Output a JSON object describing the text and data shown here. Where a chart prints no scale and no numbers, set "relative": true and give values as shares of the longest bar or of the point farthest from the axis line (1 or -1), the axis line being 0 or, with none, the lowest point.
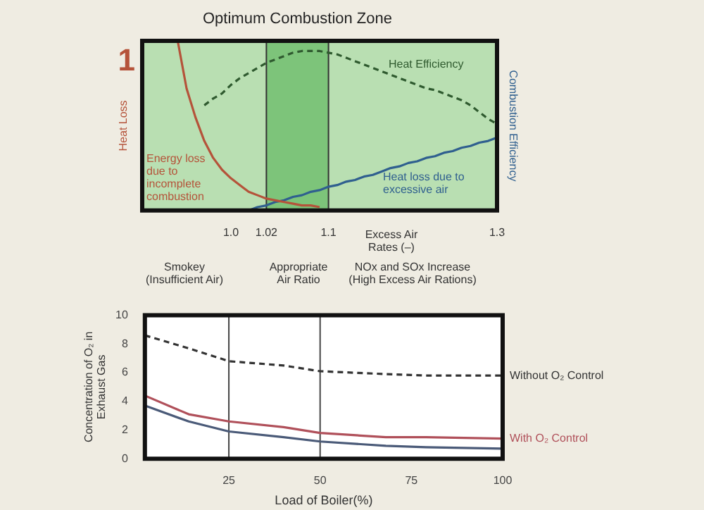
{
  "chart_data": [
    {
      "type": "line",
      "relative": true,
      "ylabel": "Heat Loss",
      "y2label": "Combustion Efficiency",
      "xlabel": "Excess Air Rates (–)",
      "legend": false,
      "annotations": [
        "1",
        "Smokey\n(Insufficient Air)",
        "Appropriate\nAir Ratio",
        "NOx and SOx Increase\n(High Excess Air Rations)"
      ],
      "categories": [
        null,
        null,
        null,
        null,
        null,
        null,
        null,
        null,
        null,
        null,
        "1.0",
        null,
        null,
        null,
        "1.02",
        null,
        null,
        null,
        null,
        null,
        null,
        "1.1",
        null,
        null,
        null,
        null,
        null,
        null,
        null,
        null,
        null,
        null,
        null,
        null,
        null,
        null,
        null,
        null,
        null,
        null,
        "1.3"
      ],
      "bands": [
        {
          "axis": "x",
          "from": "1.02",
          "to": "1.1",
          "label": "Optimum Combustion Zone",
          "color": "#7dc47a"
        }
      ],
      "series": [
        {
          "name": "Energy loss due to incomplete combustion",
          "color": "#b5533a",
          "values": [
            null,
            null,
            null,
            null,
            1.0,
            0.72,
            0.55,
            0.41,
            0.31,
            0.24,
            0.19,
            0.15,
            0.11,
            0.09,
            0.07,
            0.06,
            0.05,
            0.04,
            0.03,
            0.03,
            0.02,
            null,
            null,
            null,
            null,
            null,
            null,
            null,
            null,
            null,
            null,
            null,
            null,
            null,
            null,
            null,
            null,
            null,
            null,
            null,
            null
          ]
        },
        {
          "name": "Heat Efficiency",
          "color": "#2f5a2f",
          "line_style": "dashed",
          "values": [
            null,
            null,
            null,
            null,
            null,
            null,
            null,
            0.62,
            0.66,
            0.69,
            0.74,
            0.78,
            0.81,
            0.84,
            0.87,
            0.89,
            0.91,
            0.93,
            0.94,
            0.94,
            0.94,
            0.93,
            0.92,
            0.9,
            0.88,
            0.86,
            0.84,
            0.82,
            0.8,
            0.78,
            0.76,
            0.74,
            0.72,
            0.71,
            0.69,
            0.67,
            0.65,
            0.62,
            0.58,
            0.54,
            0.51
          ]
        },
        {
          "name": "Heat loss due to excessive air",
          "color": "#2f5f8f",
          "values": [
            null,
            null,
            null,
            null,
            null,
            null,
            null,
            null,
            null,
            null,
            null,
            null,
            0,
            0.02,
            0.03,
            0.05,
            0.06,
            0.08,
            0.09,
            0.11,
            0.12,
            0.14,
            0.15,
            0.17,
            0.18,
            0.2,
            0.21,
            0.23,
            0.25,
            0.26,
            0.28,
            0.29,
            0.31,
            0.32,
            0.34,
            0.35,
            0.37,
            0.38,
            0.4,
            0.41,
            0.43
          ]
        }
      ]
    },
    {
      "type": "line",
      "xlabel": "Load of Boiler(%)",
      "ylabel": "Concentration of O₂ in Exhaust Gas",
      "legend": false,
      "x": [
        2,
        14,
        25,
        40,
        50,
        68,
        79,
        100
      ],
      "xlim": [
        2,
        100
      ],
      "xticks": [
        25,
        50,
        75,
        100
      ],
      "ylim": [
        0,
        10
      ],
      "yticks": [
        0,
        2,
        4,
        6,
        8,
        10
      ],
      "ref_lines": [
        {
          "axis": "x",
          "value": 25,
          "color": "#444444"
        },
        {
          "axis": "x",
          "value": 50,
          "color": "#444444"
        }
      ],
      "series": [
        {
          "name": "Without O₂ Control",
          "color": "#333333",
          "line_style": "dashed",
          "values": [
            8.6,
            7.7,
            6.8,
            6.5,
            6.1,
            5.9,
            5.8,
            5.8
          ]
        },
        {
          "name": "With O₂ Control",
          "color": "#b0505a",
          "values": [
            4.4,
            3.1,
            2.6,
            2.2,
            1.8,
            1.5,
            1.5,
            1.4
          ]
        },
        {
          "color": "#4a5a78",
          "values": [
            3.7,
            2.6,
            1.9,
            1.5,
            1.2,
            0.9,
            0.8,
            0.7
          ]
        }
      ]
    }
  ]
}
